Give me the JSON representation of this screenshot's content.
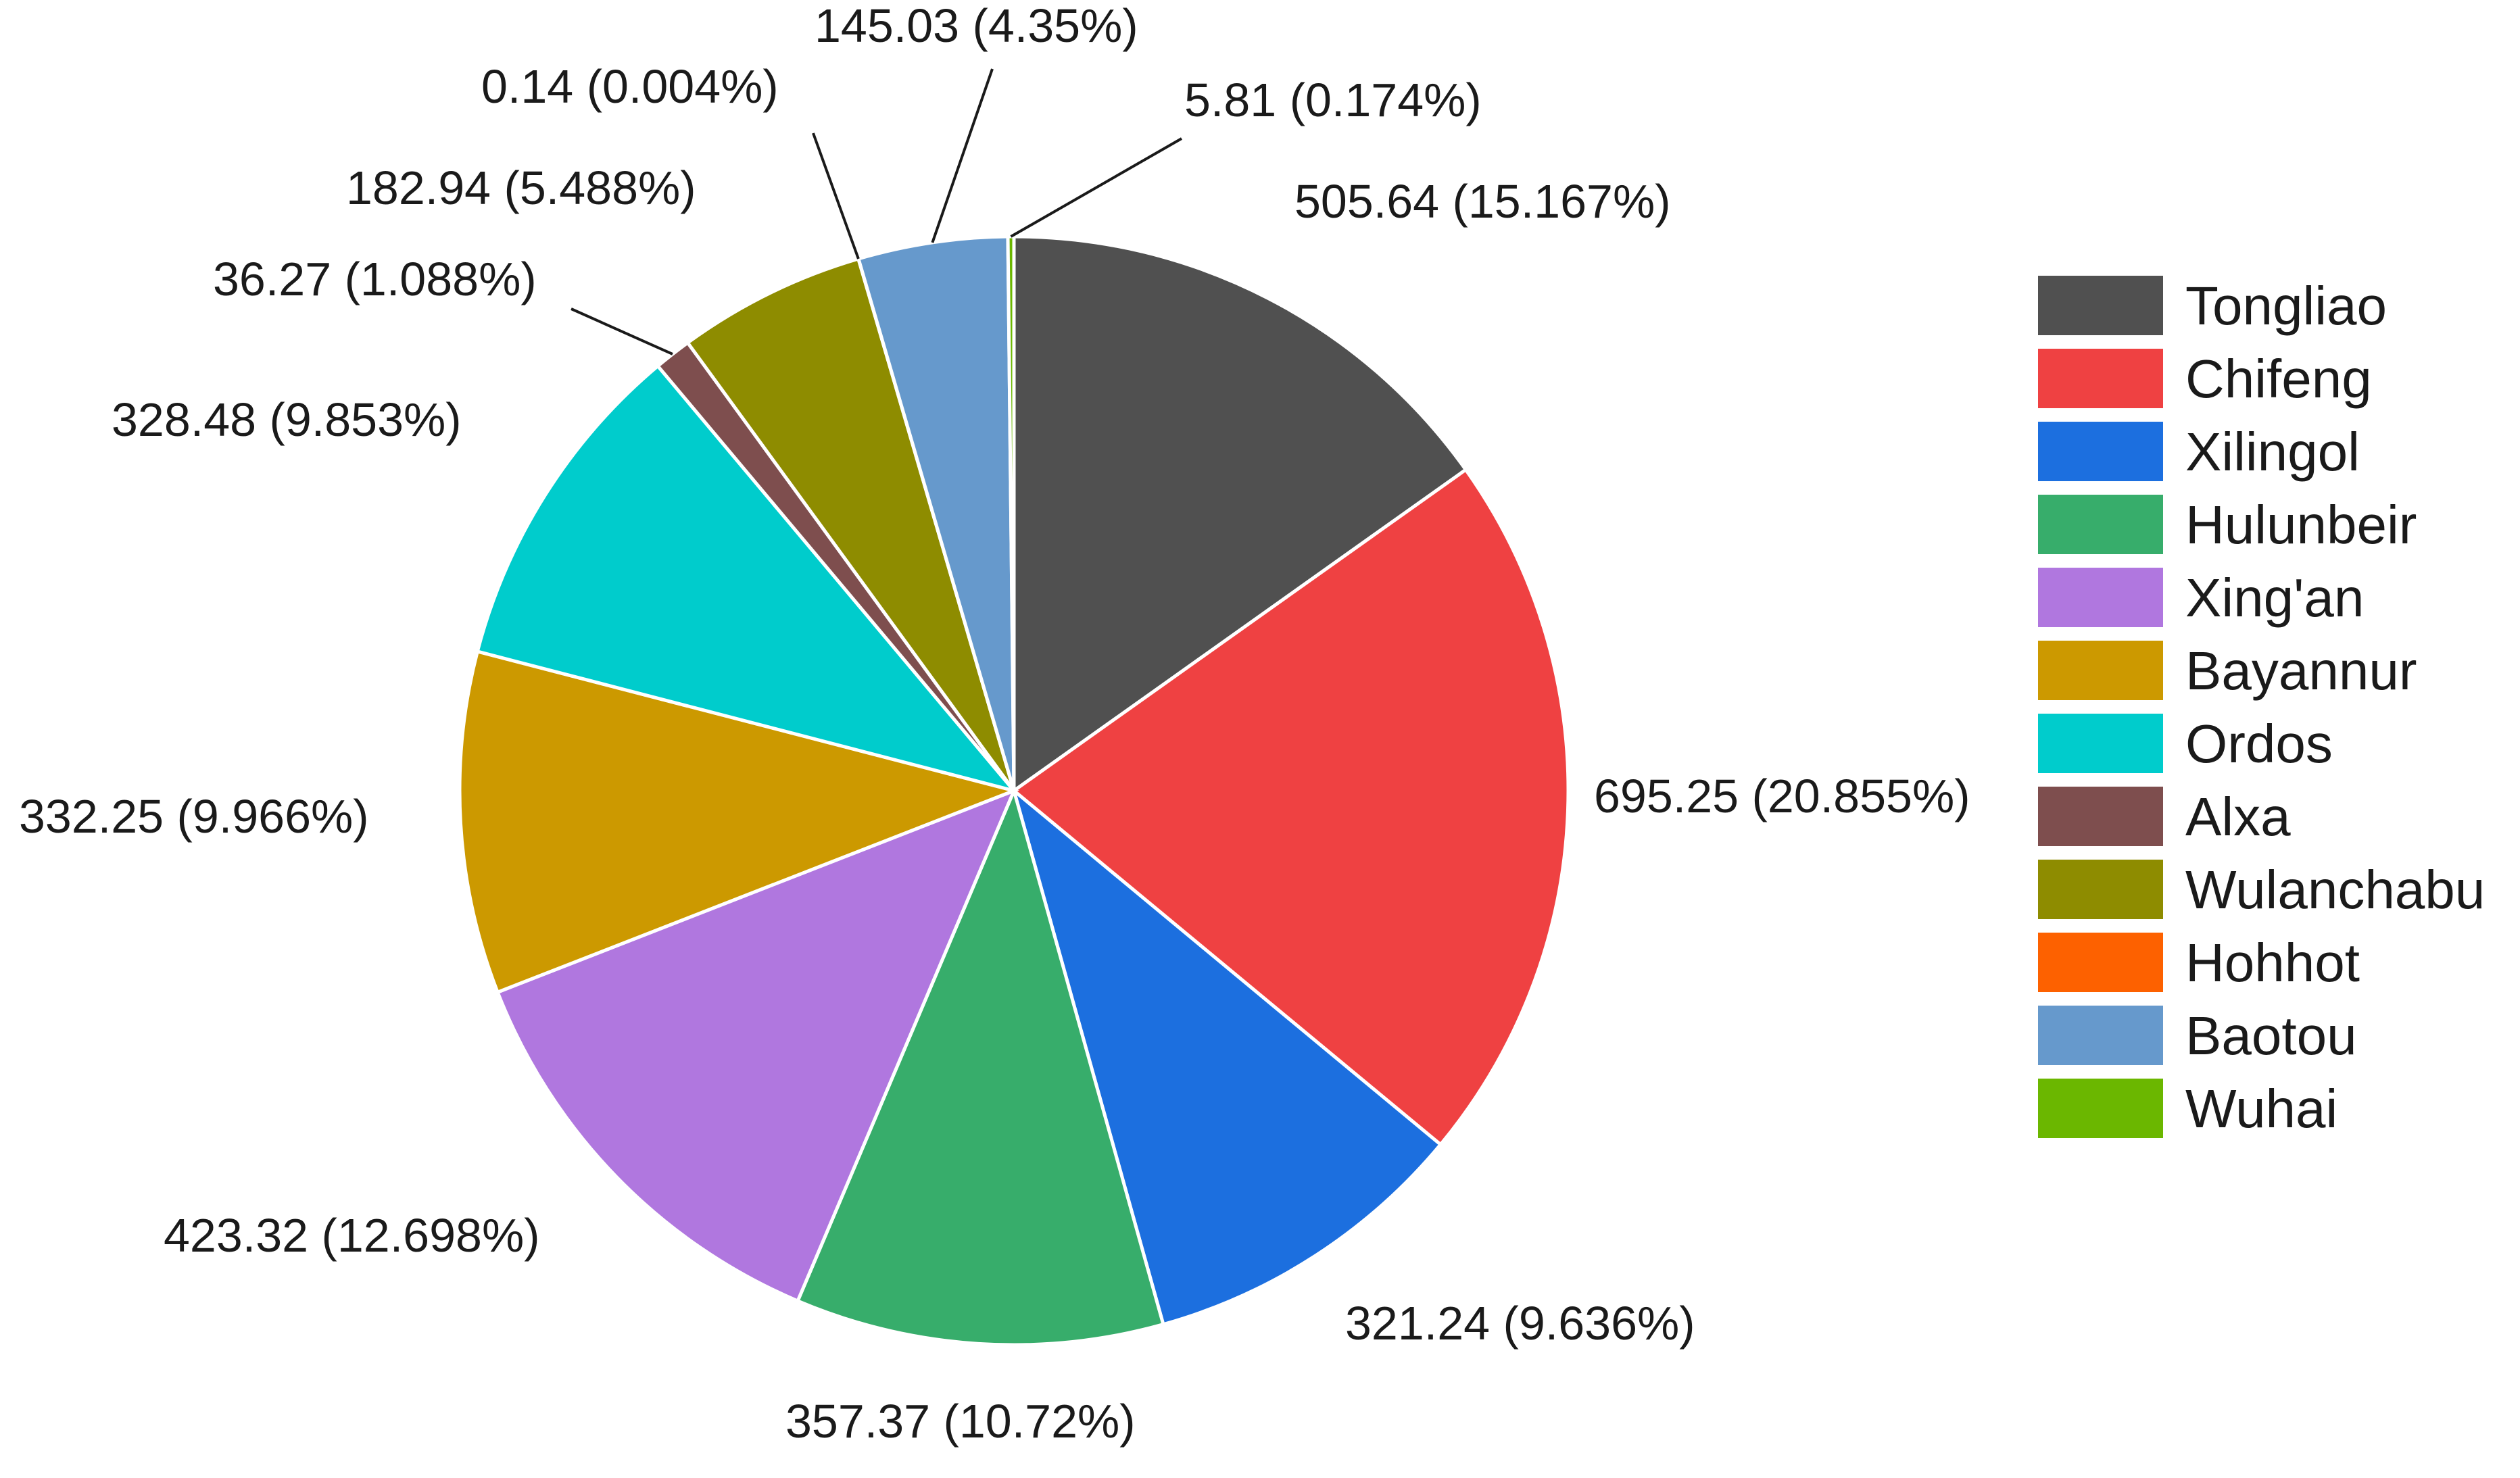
{
  "chart_data": {
    "type": "pie",
    "title": "",
    "legend_position": "right",
    "start_angle_deg": 0,
    "direction": "clockwise",
    "slices": [
      {
        "name": "Tongliao",
        "value": 505.64,
        "label": "505.64 (15.167%)",
        "color": "#505050"
      },
      {
        "name": "Chifeng",
        "value": 695.25,
        "label": "695.25 (20.855%)",
        "color": "#EF4142"
      },
      {
        "name": "Xilingol",
        "value": 321.24,
        "label": "321.24 (9.636%)",
        "color": "#1C6FDF"
      },
      {
        "name": "Hulunbeir",
        "value": 357.37,
        "label": "357.37 (10.72%)",
        "color": "#37AD6B"
      },
      {
        "name": "Xing'an",
        "value": 423.32,
        "label": "423.32 (12.698%)",
        "color": "#B077DF"
      },
      {
        "name": "Bayannur",
        "value": 332.25,
        "label": "332.25 (9.966%)",
        "color": "#CC9900"
      },
      {
        "name": "Ordos",
        "value": 328.48,
        "label": "328.48 (9.853%)",
        "color": "#00CCCC"
      },
      {
        "name": "Alxa",
        "value": 36.27,
        "label": "36.27 (1.088%)",
        "color": "#7E4E4E"
      },
      {
        "name": "Wulanchabu",
        "value": 182.94,
        "label": "182.94 (5.488%)",
        "color": "#8E8C00"
      },
      {
        "name": "Hohhot",
        "value": 0.14,
        "label": "0.14 (0.004%)",
        "color": "#FD6100"
      },
      {
        "name": "Baotou",
        "value": 145.03,
        "label": "145.03 (4.35%)",
        "color": "#6699CC"
      },
      {
        "name": "Wuhai",
        "value": 5.81,
        "label": "5.81 (0.174%)",
        "color": "#6BB700"
      }
    ]
  }
}
